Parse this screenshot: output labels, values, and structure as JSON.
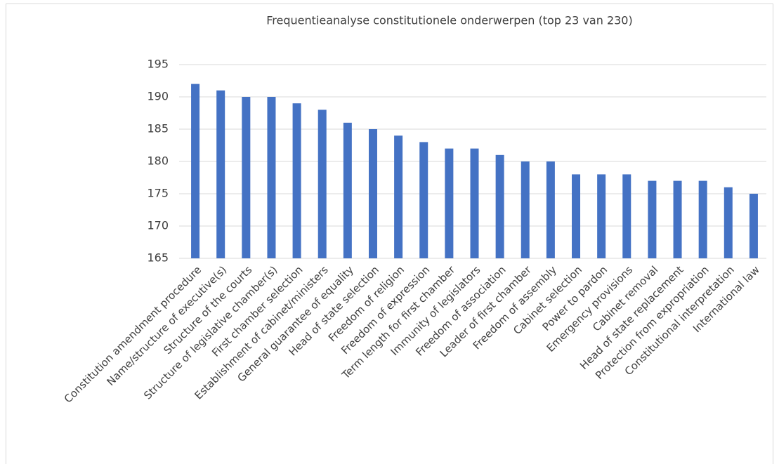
{
  "chart_data": {
    "type": "bar",
    "title": "Frequentieanalyse constitutionele onderwerpen (top 23 van 230)",
    "categories": [
      "Constitution amendment procedure",
      "Name/structure of executive(s)",
      "Structure of the courts",
      "Structure of legislative chamber(s)",
      "First chamber selection",
      "Establishment of cabinet/ministers",
      "General guarantee of equality",
      "Head of state selection",
      "Freedom of religion",
      "Freedom of expression",
      "Term length for first chamber",
      "Immunity of legislators",
      "Freedom of association",
      "Leader of first chamber",
      "Freedom of assembly",
      "Cabinet selection",
      "Power to pardon",
      "Emergency provisions",
      "Cabinet removal",
      "Head of state replacement",
      "Protection from expropriation",
      "Constitutional interpretation",
      "International law"
    ],
    "values": [
      192,
      191,
      190,
      190,
      189,
      188,
      186,
      185,
      184,
      183,
      182,
      182,
      181,
      180,
      180,
      178,
      178,
      178,
      177,
      177,
      177,
      176,
      175
    ],
    "color": "#4472c4",
    "ylim": [
      165,
      195
    ],
    "yticks": [
      165,
      170,
      175,
      180,
      185,
      190,
      195
    ],
    "grid": true
  }
}
